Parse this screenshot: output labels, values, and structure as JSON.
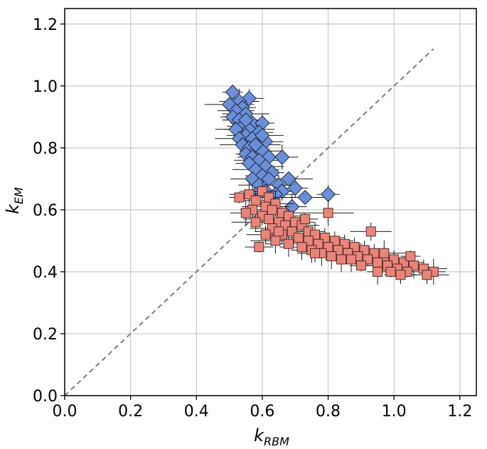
{
  "chart_data": {
    "type": "scatter",
    "title": "",
    "xlabel": {
      "main": "k",
      "sub": "RBM"
    },
    "ylabel": {
      "main": "k",
      "sub": "EM"
    },
    "xlim": [
      0.0,
      1.25
    ],
    "ylim": [
      0.0,
      1.25
    ],
    "xticks": [
      "0.0",
      "0.2",
      "0.4",
      "0.6",
      "0.8",
      "1.0",
      "1.2"
    ],
    "yticks": [
      "0.0",
      "0.2",
      "0.4",
      "0.6",
      "0.8",
      "1.0",
      "1.2"
    ],
    "xtick_values": [
      0.0,
      0.2,
      0.4,
      0.6,
      0.8,
      1.0,
      1.2
    ],
    "ytick_values": [
      0.0,
      0.2,
      0.4,
      0.6,
      0.8,
      1.0,
      1.2
    ],
    "grid": true,
    "reference_line": {
      "from": [
        0.0,
        0.0
      ],
      "to": [
        1.12,
        1.12
      ],
      "style": "dashed",
      "color": "#808080"
    },
    "series": [
      {
        "marker": "diamond",
        "color": "#6a8fd8",
        "points": [
          [
            0.51,
            0.98
          ],
          [
            0.56,
            0.96
          ],
          [
            0.53,
            0.95
          ],
          [
            0.5,
            0.94
          ],
          [
            0.54,
            0.93
          ],
          [
            0.52,
            0.92
          ],
          [
            0.55,
            0.91
          ],
          [
            0.51,
            0.9
          ],
          [
            0.53,
            0.89
          ],
          [
            0.57,
            0.88
          ],
          [
            0.6,
            0.88
          ],
          [
            0.54,
            0.87
          ],
          [
            0.52,
            0.86
          ],
          [
            0.56,
            0.86
          ],
          [
            0.59,
            0.85
          ],
          [
            0.55,
            0.84
          ],
          [
            0.53,
            0.83
          ],
          [
            0.57,
            0.83
          ],
          [
            0.61,
            0.82
          ],
          [
            0.54,
            0.81
          ],
          [
            0.56,
            0.8
          ],
          [
            0.58,
            0.79
          ],
          [
            0.6,
            0.79
          ],
          [
            0.55,
            0.78
          ],
          [
            0.57,
            0.77
          ],
          [
            0.62,
            0.77
          ],
          [
            0.59,
            0.76
          ],
          [
            0.56,
            0.75
          ],
          [
            0.61,
            0.74
          ],
          [
            0.58,
            0.73
          ],
          [
            0.63,
            0.72
          ],
          [
            0.6,
            0.71
          ],
          [
            0.57,
            0.7
          ],
          [
            0.62,
            0.7
          ],
          [
            0.65,
            0.68
          ],
          [
            0.59,
            0.68
          ],
          [
            0.61,
            0.66
          ],
          [
            0.66,
            0.66
          ],
          [
            0.64,
            0.65
          ],
          [
            0.68,
            0.7
          ],
          [
            0.7,
            0.67
          ],
          [
            0.58,
            0.65
          ],
          [
            0.73,
            0.64
          ],
          [
            0.8,
            0.65
          ],
          [
            0.66,
            0.77
          ],
          [
            0.6,
            0.84
          ],
          [
            0.63,
            0.62
          ],
          [
            0.69,
            0.61
          ],
          [
            0.55,
            0.89
          ],
          [
            0.58,
            0.81
          ]
        ]
      },
      {
        "marker": "square",
        "color": "#e8857a",
        "points": [
          [
            0.53,
            0.64
          ],
          [
            0.6,
            0.66
          ],
          [
            0.56,
            0.65
          ],
          [
            0.62,
            0.64
          ],
          [
            0.58,
            0.63
          ],
          [
            0.64,
            0.62
          ],
          [
            0.61,
            0.61
          ],
          [
            0.57,
            0.6
          ],
          [
            0.63,
            0.6
          ],
          [
            0.66,
            0.59
          ],
          [
            0.6,
            0.58
          ],
          [
            0.55,
            0.59
          ],
          [
            0.68,
            0.58
          ],
          [
            0.62,
            0.57
          ],
          [
            0.65,
            0.56
          ],
          [
            0.7,
            0.56
          ],
          [
            0.58,
            0.56
          ],
          [
            0.67,
            0.55
          ],
          [
            0.72,
            0.55
          ],
          [
            0.63,
            0.54
          ],
          [
            0.69,
            0.53
          ],
          [
            0.74,
            0.53
          ],
          [
            0.66,
            0.52
          ],
          [
            0.76,
            0.52
          ],
          [
            0.71,
            0.51
          ],
          [
            0.79,
            0.51
          ],
          [
            0.64,
            0.5
          ],
          [
            0.74,
            0.5
          ],
          [
            0.82,
            0.5
          ],
          [
            0.68,
            0.49
          ],
          [
            0.77,
            0.49
          ],
          [
            0.85,
            0.49
          ],
          [
            0.72,
            0.48
          ],
          [
            0.8,
            0.48
          ],
          [
            0.88,
            0.48
          ],
          [
            0.75,
            0.47
          ],
          [
            0.83,
            0.47
          ],
          [
            0.91,
            0.47
          ],
          [
            0.78,
            0.46
          ],
          [
            0.86,
            0.46
          ],
          [
            0.94,
            0.46
          ],
          [
            0.81,
            0.45
          ],
          [
            0.89,
            0.45
          ],
          [
            0.97,
            0.45
          ],
          [
            0.84,
            0.44
          ],
          [
            0.92,
            0.44
          ],
          [
            1.0,
            0.44
          ],
          [
            0.95,
            0.43
          ],
          [
            1.03,
            0.43
          ],
          [
            0.98,
            0.42
          ],
          [
            1.06,
            0.42
          ],
          [
            1.01,
            0.41
          ],
          [
            1.09,
            0.41
          ],
          [
            1.12,
            0.4
          ],
          [
            1.04,
            0.4
          ],
          [
            1.1,
            0.39
          ],
          [
            0.95,
            0.4
          ],
          [
            0.99,
            0.4
          ],
          [
            0.93,
            0.53
          ],
          [
            0.8,
            0.59
          ],
          [
            0.59,
            0.48
          ],
          [
            0.61,
            0.52
          ],
          [
            0.65,
            0.53
          ],
          [
            0.73,
            0.57
          ],
          [
            0.76,
            0.46
          ],
          [
            0.87,
            0.44
          ],
          [
            0.9,
            0.42
          ],
          [
            1.02,
            0.39
          ],
          [
            0.97,
            0.46
          ],
          [
            1.05,
            0.45
          ]
        ]
      }
    ]
  }
}
